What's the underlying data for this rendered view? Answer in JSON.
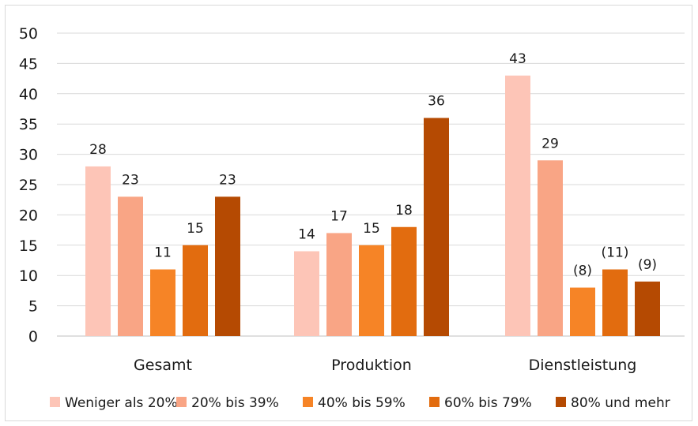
{
  "chart_data": {
    "type": "bar",
    "categories": [
      "Gesamt",
      "Produktion",
      "Dienstleistung"
    ],
    "series": [
      {
        "name": "Weniger als 20%",
        "color": "#fdc5b7",
        "values": [
          28,
          14,
          43
        ],
        "labels": [
          "28",
          "14",
          "43"
        ]
      },
      {
        "name": "20% bis 39%",
        "color": "#f9a585",
        "values": [
          23,
          17,
          29
        ],
        "labels": [
          "23",
          "17",
          "29"
        ]
      },
      {
        "name": "40% bis 59%",
        "color": "#f68426",
        "values": [
          11,
          15,
          8
        ],
        "labels": [
          "11",
          "15",
          "(8)"
        ]
      },
      {
        "name": "60% bis 79%",
        "color": "#e26c0f",
        "values": [
          15,
          18,
          11
        ],
        "labels": [
          "15",
          "18",
          "(11)"
        ]
      },
      {
        "name": "80% und mehr",
        "color": "#b54a02",
        "values": [
          23,
          36,
          9
        ],
        "labels": [
          "23",
          "36",
          "(9)"
        ]
      }
    ],
    "yticks": [
      "0",
      "5",
      "10",
      "15",
      "20",
      "25",
      "30",
      "35",
      "40",
      "45",
      "50"
    ],
    "ylim": [
      0,
      50
    ],
    "grid": true,
    "legend_position": "bottom"
  }
}
